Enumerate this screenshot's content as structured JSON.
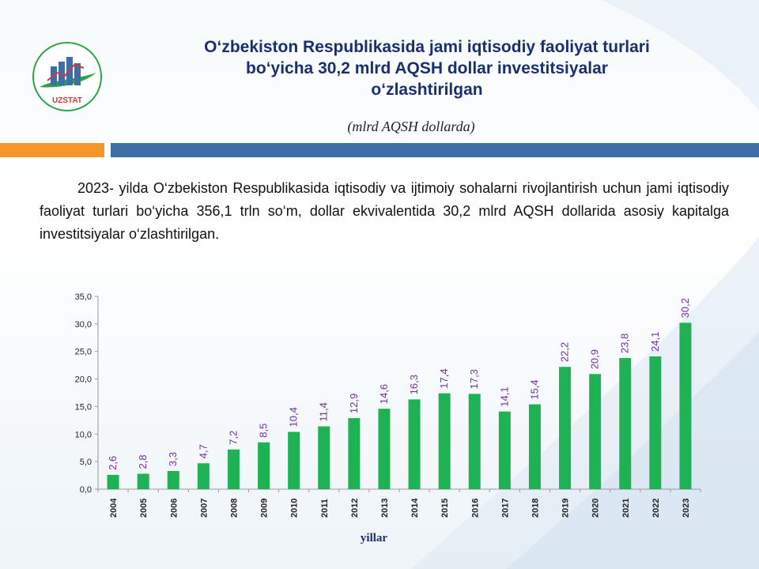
{
  "header": {
    "title": "O‘zbekiston Respublikasida jami iqtisodiy faoliyat turlari\nbo‘yicha 30,2  mlrd AQSH dollar investitsiyalar\no‘zlashtirilgan",
    "subtitle": "(mlrd AQSH dollarda)"
  },
  "logo": {
    "text": "UZSTAT"
  },
  "body": {
    "paragraph": "2023- yilda O‘zbekiston Respublikasida iqtisodiy va ijtimoiy sohalarni rivojlantirish uchun jami iqtisodiy faoliyat turlari bo‘yicha 356,1 trln so‘m, dollar ekvivalentida 30,2 mlrd AQSH dollarida asosiy kapitalga investitsiyalar o‘zlashtirilgan."
  },
  "colors": {
    "bar": "#1fb254",
    "data_label": "#7030a0",
    "accent_orange": "#f5962a",
    "accent_blue": "#3d6fa6",
    "title": "#1a2f6e"
  },
  "chart_data": {
    "type": "bar",
    "categories": [
      "2004",
      "2005",
      "2006",
      "2007",
      "2008",
      "2009",
      "2010",
      "2011",
      "2012",
      "2013",
      "2014",
      "2015",
      "2016",
      "2017",
      "2018",
      "2019",
      "2020",
      "2021",
      "2022",
      "2023"
    ],
    "values": [
      2.6,
      2.8,
      3.3,
      4.7,
      7.2,
      8.5,
      10.4,
      11.4,
      12.9,
      14.6,
      16.3,
      17.4,
      17.3,
      14.1,
      15.4,
      22.2,
      20.9,
      23.8,
      24.1,
      30.2
    ],
    "data_labels": [
      "2,6",
      "2,8",
      "3,3",
      "4,7",
      "7,2",
      "8,5",
      "10,4",
      "11,4",
      "12,9",
      "14,6",
      "16,3",
      "17,4",
      "17,3",
      "14,1",
      "15,4",
      "22,2",
      "20,9",
      "23,8",
      "24,1",
      "30,2"
    ],
    "y_ticks": [
      "0,0",
      "5,0",
      "10,0",
      "15,0",
      "20,0",
      "25,0",
      "30,0",
      "35,0"
    ],
    "ylim": [
      0,
      35
    ],
    "xlabel": "yillar",
    "ylabel": "",
    "grid": false,
    "legend": "none"
  }
}
